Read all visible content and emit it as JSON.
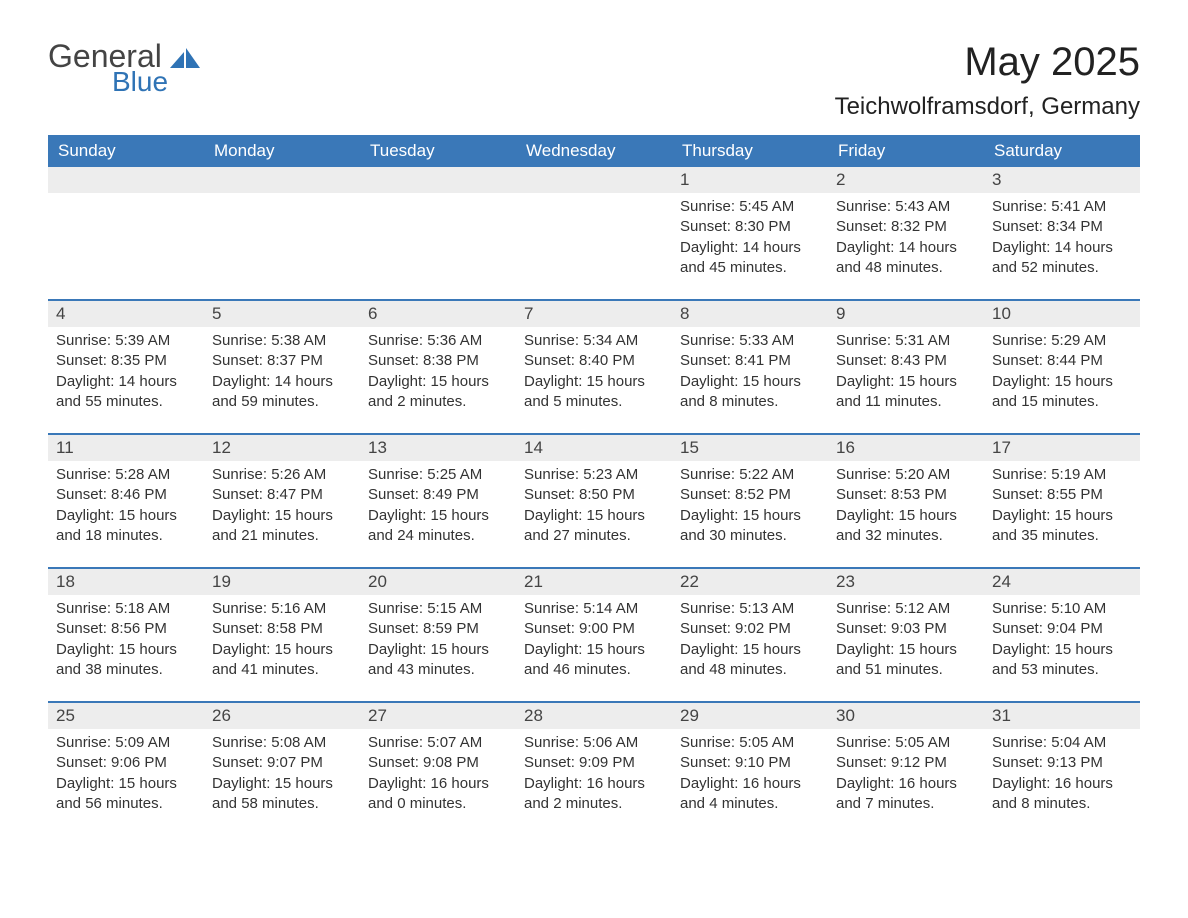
{
  "logo": {
    "general": "General",
    "blue": "Blue",
    "icon_color": "#2f73b5"
  },
  "title": "May 2025",
  "location": "Teichwolframsdorf, Germany",
  "colors": {
    "header_bg": "#3a78b8",
    "header_text": "#ffffff",
    "daynum_bg": "#ededed",
    "text": "#333333",
    "separator": "#3a78b8",
    "page_bg": "#ffffff"
  },
  "layout": {
    "columns": 7,
    "rows": 5,
    "font_family": "Arial",
    "title_fontsize": 40,
    "location_fontsize": 24,
    "weekday_fontsize": 17,
    "body_fontsize": 15
  },
  "weekdays": [
    "Sunday",
    "Monday",
    "Tuesday",
    "Wednesday",
    "Thursday",
    "Friday",
    "Saturday"
  ],
  "weeks": [
    [
      {
        "day": "",
        "sunrise": "",
        "sunset": "",
        "daylight1": "",
        "daylight2": ""
      },
      {
        "day": "",
        "sunrise": "",
        "sunset": "",
        "daylight1": "",
        "daylight2": ""
      },
      {
        "day": "",
        "sunrise": "",
        "sunset": "",
        "daylight1": "",
        "daylight2": ""
      },
      {
        "day": "",
        "sunrise": "",
        "sunset": "",
        "daylight1": "",
        "daylight2": ""
      },
      {
        "day": "1",
        "sunrise": "Sunrise: 5:45 AM",
        "sunset": "Sunset: 8:30 PM",
        "daylight1": "Daylight: 14 hours",
        "daylight2": "and 45 minutes."
      },
      {
        "day": "2",
        "sunrise": "Sunrise: 5:43 AM",
        "sunset": "Sunset: 8:32 PM",
        "daylight1": "Daylight: 14 hours",
        "daylight2": "and 48 minutes."
      },
      {
        "day": "3",
        "sunrise": "Sunrise: 5:41 AM",
        "sunset": "Sunset: 8:34 PM",
        "daylight1": "Daylight: 14 hours",
        "daylight2": "and 52 minutes."
      }
    ],
    [
      {
        "day": "4",
        "sunrise": "Sunrise: 5:39 AM",
        "sunset": "Sunset: 8:35 PM",
        "daylight1": "Daylight: 14 hours",
        "daylight2": "and 55 minutes."
      },
      {
        "day": "5",
        "sunrise": "Sunrise: 5:38 AM",
        "sunset": "Sunset: 8:37 PM",
        "daylight1": "Daylight: 14 hours",
        "daylight2": "and 59 minutes."
      },
      {
        "day": "6",
        "sunrise": "Sunrise: 5:36 AM",
        "sunset": "Sunset: 8:38 PM",
        "daylight1": "Daylight: 15 hours",
        "daylight2": "and 2 minutes."
      },
      {
        "day": "7",
        "sunrise": "Sunrise: 5:34 AM",
        "sunset": "Sunset: 8:40 PM",
        "daylight1": "Daylight: 15 hours",
        "daylight2": "and 5 minutes."
      },
      {
        "day": "8",
        "sunrise": "Sunrise: 5:33 AM",
        "sunset": "Sunset: 8:41 PM",
        "daylight1": "Daylight: 15 hours",
        "daylight2": "and 8 minutes."
      },
      {
        "day": "9",
        "sunrise": "Sunrise: 5:31 AM",
        "sunset": "Sunset: 8:43 PM",
        "daylight1": "Daylight: 15 hours",
        "daylight2": "and 11 minutes."
      },
      {
        "day": "10",
        "sunrise": "Sunrise: 5:29 AM",
        "sunset": "Sunset: 8:44 PM",
        "daylight1": "Daylight: 15 hours",
        "daylight2": "and 15 minutes."
      }
    ],
    [
      {
        "day": "11",
        "sunrise": "Sunrise: 5:28 AM",
        "sunset": "Sunset: 8:46 PM",
        "daylight1": "Daylight: 15 hours",
        "daylight2": "and 18 minutes."
      },
      {
        "day": "12",
        "sunrise": "Sunrise: 5:26 AM",
        "sunset": "Sunset: 8:47 PM",
        "daylight1": "Daylight: 15 hours",
        "daylight2": "and 21 minutes."
      },
      {
        "day": "13",
        "sunrise": "Sunrise: 5:25 AM",
        "sunset": "Sunset: 8:49 PM",
        "daylight1": "Daylight: 15 hours",
        "daylight2": "and 24 minutes."
      },
      {
        "day": "14",
        "sunrise": "Sunrise: 5:23 AM",
        "sunset": "Sunset: 8:50 PM",
        "daylight1": "Daylight: 15 hours",
        "daylight2": "and 27 minutes."
      },
      {
        "day": "15",
        "sunrise": "Sunrise: 5:22 AM",
        "sunset": "Sunset: 8:52 PM",
        "daylight1": "Daylight: 15 hours",
        "daylight2": "and 30 minutes."
      },
      {
        "day": "16",
        "sunrise": "Sunrise: 5:20 AM",
        "sunset": "Sunset: 8:53 PM",
        "daylight1": "Daylight: 15 hours",
        "daylight2": "and 32 minutes."
      },
      {
        "day": "17",
        "sunrise": "Sunrise: 5:19 AM",
        "sunset": "Sunset: 8:55 PM",
        "daylight1": "Daylight: 15 hours",
        "daylight2": "and 35 minutes."
      }
    ],
    [
      {
        "day": "18",
        "sunrise": "Sunrise: 5:18 AM",
        "sunset": "Sunset: 8:56 PM",
        "daylight1": "Daylight: 15 hours",
        "daylight2": "and 38 minutes."
      },
      {
        "day": "19",
        "sunrise": "Sunrise: 5:16 AM",
        "sunset": "Sunset: 8:58 PM",
        "daylight1": "Daylight: 15 hours",
        "daylight2": "and 41 minutes."
      },
      {
        "day": "20",
        "sunrise": "Sunrise: 5:15 AM",
        "sunset": "Sunset: 8:59 PM",
        "daylight1": "Daylight: 15 hours",
        "daylight2": "and 43 minutes."
      },
      {
        "day": "21",
        "sunrise": "Sunrise: 5:14 AM",
        "sunset": "Sunset: 9:00 PM",
        "daylight1": "Daylight: 15 hours",
        "daylight2": "and 46 minutes."
      },
      {
        "day": "22",
        "sunrise": "Sunrise: 5:13 AM",
        "sunset": "Sunset: 9:02 PM",
        "daylight1": "Daylight: 15 hours",
        "daylight2": "and 48 minutes."
      },
      {
        "day": "23",
        "sunrise": "Sunrise: 5:12 AM",
        "sunset": "Sunset: 9:03 PM",
        "daylight1": "Daylight: 15 hours",
        "daylight2": "and 51 minutes."
      },
      {
        "day": "24",
        "sunrise": "Sunrise: 5:10 AM",
        "sunset": "Sunset: 9:04 PM",
        "daylight1": "Daylight: 15 hours",
        "daylight2": "and 53 minutes."
      }
    ],
    [
      {
        "day": "25",
        "sunrise": "Sunrise: 5:09 AM",
        "sunset": "Sunset: 9:06 PM",
        "daylight1": "Daylight: 15 hours",
        "daylight2": "and 56 minutes."
      },
      {
        "day": "26",
        "sunrise": "Sunrise: 5:08 AM",
        "sunset": "Sunset: 9:07 PM",
        "daylight1": "Daylight: 15 hours",
        "daylight2": "and 58 minutes."
      },
      {
        "day": "27",
        "sunrise": "Sunrise: 5:07 AM",
        "sunset": "Sunset: 9:08 PM",
        "daylight1": "Daylight: 16 hours",
        "daylight2": "and 0 minutes."
      },
      {
        "day": "28",
        "sunrise": "Sunrise: 5:06 AM",
        "sunset": "Sunset: 9:09 PM",
        "daylight1": "Daylight: 16 hours",
        "daylight2": "and 2 minutes."
      },
      {
        "day": "29",
        "sunrise": "Sunrise: 5:05 AM",
        "sunset": "Sunset: 9:10 PM",
        "daylight1": "Daylight: 16 hours",
        "daylight2": "and 4 minutes."
      },
      {
        "day": "30",
        "sunrise": "Sunrise: 5:05 AM",
        "sunset": "Sunset: 9:12 PM",
        "daylight1": "Daylight: 16 hours",
        "daylight2": "and 7 minutes."
      },
      {
        "day": "31",
        "sunrise": "Sunrise: 5:04 AM",
        "sunset": "Sunset: 9:13 PM",
        "daylight1": "Daylight: 16 hours",
        "daylight2": "and 8 minutes."
      }
    ]
  ]
}
